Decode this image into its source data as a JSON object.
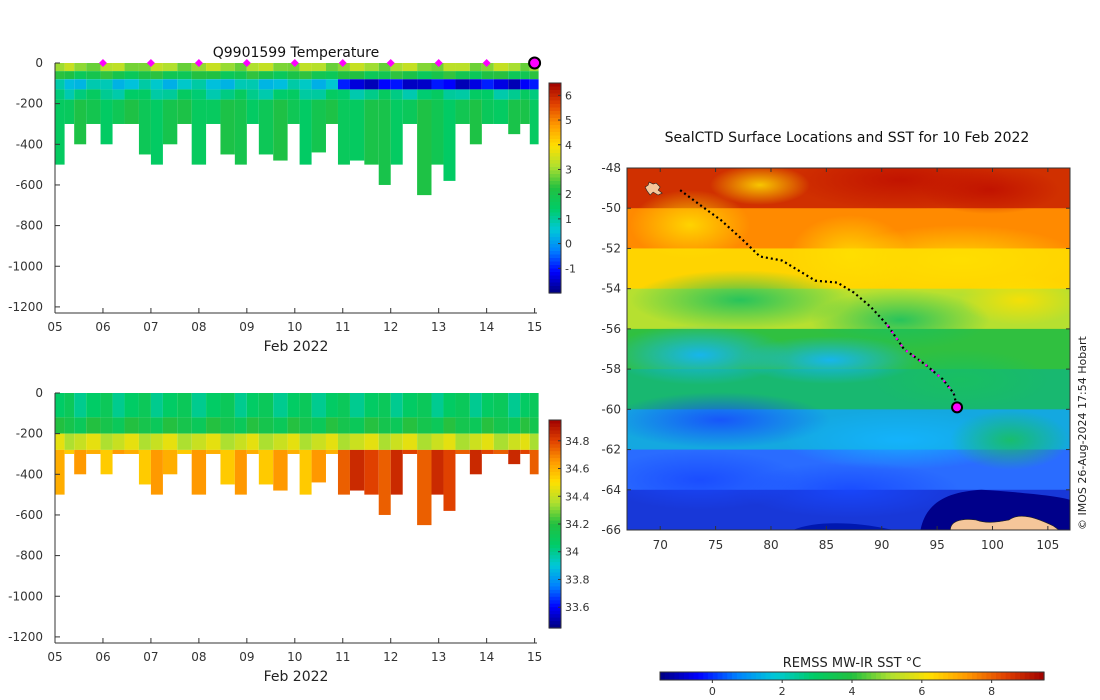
{
  "colors": {
    "jet": [
      "#00007f",
      "#0000ff",
      "#0080ff",
      "#00c8d8",
      "#00cc66",
      "#22c040",
      "#aee030",
      "#ffe000",
      "#ff9900",
      "#e04000",
      "#a00000"
    ],
    "magenta": "#ff00ff",
    "land": "#f5c69a",
    "axis": "#333333"
  },
  "chart_data": [
    {
      "id": "temperature-section",
      "type": "heatmap",
      "title": "Q9901599  Temperature",
      "xlabel": "Feb 2022",
      "ylabel": "",
      "x_ticks": [
        "05",
        "06",
        "07",
        "08",
        "09",
        "10",
        "11",
        "12",
        "13",
        "14",
        "15"
      ],
      "y_ticks": [
        0,
        -200,
        -400,
        -600,
        -800,
        -1000,
        -1200
      ],
      "xlim": [
        5,
        15.05
      ],
      "ylim": [
        -1230,
        0
      ],
      "colorbar": {
        "min": -2.0,
        "max": 6.5,
        "ticks": [
          6,
          5,
          4,
          3,
          2,
          1,
          0,
          -1
        ]
      },
      "profile_times": [
        5.1,
        5.3,
        5.5,
        5.8,
        6.1,
        6.3,
        6.6,
        6.9,
        7.1,
        7.4,
        7.7,
        8.0,
        8.3,
        8.6,
        8.9,
        9.1,
        9.4,
        9.7,
        10.0,
        10.2,
        10.5,
        10.8,
        11.0,
        11.3,
        11.6,
        11.9,
        12.1,
        12.4,
        12.7,
        13.0,
        13.2,
        13.5,
        13.8,
        14.0,
        14.3,
        14.6,
        14.8,
        15.0
      ],
      "profile_depths": [
        500,
        300,
        400,
        300,
        400,
        300,
        300,
        450,
        500,
        400,
        300,
        500,
        300,
        450,
        500,
        300,
        450,
        480,
        300,
        500,
        440,
        300,
        500,
        480,
        500,
        600,
        500,
        300,
        650,
        500,
        580,
        300,
        400,
        300,
        300,
        350,
        300,
        400
      ],
      "surface_markers": [
        6,
        7,
        8,
        9,
        10,
        11,
        12,
        13,
        14
      ],
      "current_marker": 15.0,
      "layers": [
        {
          "top": 0,
          "bottom": -40,
          "value": 3.0
        },
        {
          "top": -40,
          "bottom": -80,
          "value": 2.0
        },
        {
          "top": -80,
          "bottom": -130,
          "value": 0.6
        },
        {
          "top": -130,
          "bottom": -180,
          "value": 1.2
        },
        {
          "top": -180,
          "bottom": -9999,
          "value": 1.8
        }
      ],
      "cold_event": {
        "from": 11.0,
        "to": 15.0,
        "value": -1.3
      }
    },
    {
      "id": "salinity-section",
      "type": "heatmap",
      "title": "",
      "xlabel": "Feb 2022",
      "ylabel": "",
      "x_ticks": [
        "05",
        "06",
        "07",
        "08",
        "09",
        "10",
        "11",
        "12",
        "13",
        "14",
        "15"
      ],
      "y_ticks": [
        0,
        -200,
        -400,
        -600,
        -800,
        -1000,
        -1200
      ],
      "xlim": [
        5,
        15.05
      ],
      "ylim": [
        -1230,
        0
      ],
      "colorbar": {
        "min": 33.45,
        "max": 34.95,
        "ticks": [
          34.8,
          34.6,
          34.4,
          34.2,
          34,
          33.8,
          33.6
        ]
      },
      "layers": [
        {
          "top": 0,
          "bottom": -120,
          "value": 34.05
        },
        {
          "top": -120,
          "bottom": -200,
          "value": 34.15
        },
        {
          "top": -200,
          "bottom": -280,
          "value": 34.4
        },
        {
          "top": -280,
          "bottom": -9999,
          "value": 34.6
        }
      ],
      "deep_event": {
        "from": 11.0,
        "to": 15.0,
        "value": 34.8
      }
    },
    {
      "id": "sst-map",
      "type": "heatmap",
      "title": "SealCTD Surface Locations and SST for 10 Feb 2022",
      "xlabel": "",
      "ylabel": "",
      "x_ticks": [
        70,
        75,
        80,
        85,
        90,
        95,
        100,
        105
      ],
      "y_ticks": [
        -48,
        -50,
        -52,
        -54,
        -56,
        -58,
        -60,
        -62,
        -64,
        -66
      ],
      "xlim": [
        67,
        107
      ],
      "ylim": [
        -66,
        -48
      ],
      "colorbar": {
        "label": "REMSS MW-IR SST °C",
        "min": -1.5,
        "max": 9.5,
        "ticks": [
          0,
          2,
          4,
          6,
          8
        ]
      },
      "track": [
        [
          71.8,
          -49.1
        ],
        [
          73.5,
          -49.8
        ],
        [
          75.5,
          -50.6
        ],
        [
          77.5,
          -51.6
        ],
        [
          79.0,
          -52.4
        ],
        [
          81.0,
          -52.6
        ],
        [
          82.5,
          -53.1
        ],
        [
          84.0,
          -53.6
        ],
        [
          86.0,
          -53.7
        ],
        [
          87.5,
          -54.2
        ],
        [
          89.0,
          -54.9
        ],
        [
          90.5,
          -55.8
        ],
        [
          92.0,
          -57.0
        ],
        [
          94.0,
          -57.8
        ],
        [
          95.5,
          -58.5
        ],
        [
          96.5,
          -59.2
        ],
        [
          96.8,
          -59.9
        ]
      ],
      "track_magenta": [
        [
          90.5,
          -55.8
        ],
        [
          92.0,
          -57.0
        ],
        [
          94.0,
          -57.8
        ],
        [
          95.5,
          -58.5
        ],
        [
          96.5,
          -59.2
        ]
      ],
      "current_position": [
        96.8,
        -59.9
      ]
    }
  ],
  "watermark": "© IMOS 26-Aug-2024 17:54 Hobart"
}
